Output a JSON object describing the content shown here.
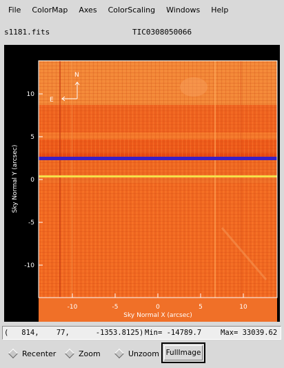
{
  "menu": {
    "items": [
      "File",
      "ColorMap",
      "Axes",
      "ColorScaling",
      "Windows",
      "Help"
    ]
  },
  "header": {
    "filename": "s1181.fits",
    "object": "TIC0308050066"
  },
  "plot": {
    "xlabel": "Sky Normal X (arcsec)",
    "ylabel": "Sky Normal Y (arcsec)",
    "xticks": [
      "-10",
      "-5",
      "0",
      "5",
      "10"
    ],
    "yticks": [
      "10",
      "5",
      "0",
      "-5",
      "-10"
    ],
    "compass_north": "N",
    "compass_east": "E",
    "colors": {
      "background": "#f26a1f",
      "blue_band": "#3a1fc4",
      "yellow_band": "#f5e04a"
    }
  },
  "status": {
    "coords": "(   814,    77,      -1353.8125)",
    "min": "Min= -14789.7",
    "max": "Max= 33039.62"
  },
  "controls": {
    "recenter": "Recenter",
    "zoom": "Zoom",
    "unzoom": "Unzoom",
    "fullimage": "FullImage"
  }
}
